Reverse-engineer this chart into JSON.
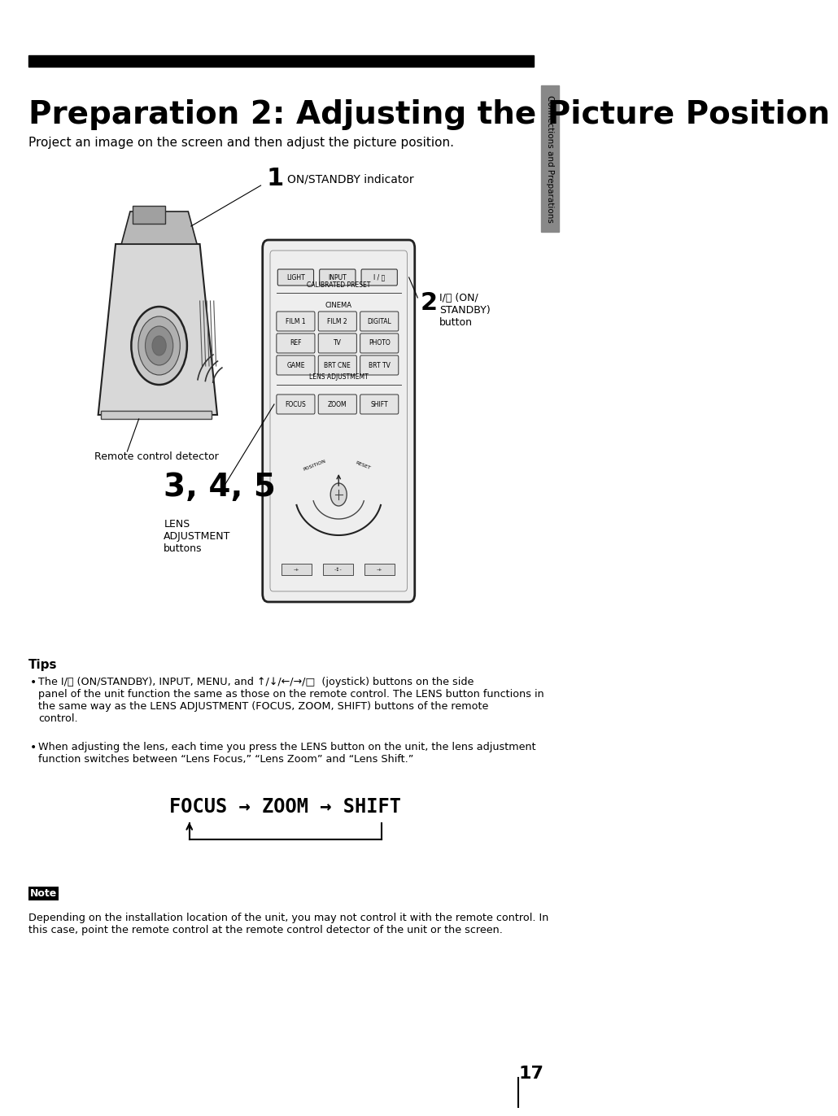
{
  "title": "Preparation 2: Adjusting the Picture Position",
  "subtitle": "Project an image on the screen and then adjust the picture position.",
  "bg_color": "#ffffff",
  "title_bar_color": "#000000",
  "title_fontsize": 28,
  "subtitle_fontsize": 11,
  "sidebar_color": "#888888",
  "sidebar_label": "Connections and Preparations",
  "step1_num": "1",
  "step1_label": "ON/STANDBY indicator",
  "step2_num": "2",
  "step2_label": "I/⏽ (ON/\nSTANDBY)\nbutton",
  "step345_num": "3, 4, 5",
  "step345_label": "LENS\nADJUSTMENT\nbuttons",
  "remote_label": "Remote control detector",
  "tips_title": "Tips",
  "tips_bullet1": "The I/⏽ (ON/STANDBY), INPUT, MENU, and ↑/↓/←/→/□  (joystick) buttons on the side\npanel of the unit function the same as those on the remote control. The LENS button functions in\nthe same way as the LENS ADJUSTMENT (FOCUS, ZOOM, SHIFT) buttons of the remote\ncontrol.",
  "tips_bullet2": "When adjusting the lens, each time you press the LENS button on the unit, the lens adjustment\nfunction switches between “Lens Focus,” “Lens Zoom” and “Lens Shift.”",
  "focus_zoom_shift": "FOCUS → ZOOM → SHIFT",
  "note_label": "Note",
  "note_text": "Depending on the installation location of the unit, you may not control it with the remote control. In\nthis case, point the remote control at the remote control detector of the unit or the screen.",
  "page_num": "17"
}
